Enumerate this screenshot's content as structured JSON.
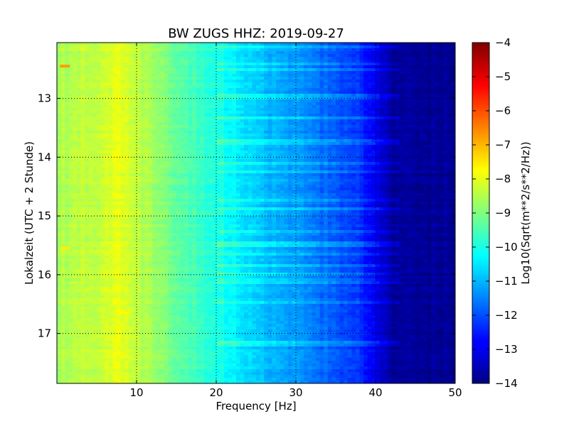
{
  "chart_data": {
    "type": "heatmap",
    "title": "BW ZUGS HHZ: 2019-09-27",
    "xlabel": "Frequency [Hz]",
    "ylabel": "Lokalzeit (UTC + 2 Stunde)",
    "xlim": [
      0,
      50
    ],
    "ylim_hours": [
      12.05,
      17.85
    ],
    "y_inverted": true,
    "x_ticks": [
      10,
      20,
      30,
      40,
      50
    ],
    "y_ticks": [
      13,
      14,
      15,
      16,
      17
    ],
    "grid": true,
    "colormap": "jet",
    "colorbar": {
      "label": "Log10(Sqrt(m**2/s**2/Hz))",
      "range": [
        -14,
        -4
      ],
      "ticks": [
        -4,
        -5,
        -6,
        -7,
        -8,
        -9,
        -10,
        -11,
        -12,
        -13,
        -14
      ]
    },
    "spectrum_profile": {
      "frequency_hz": [
        0,
        5,
        8,
        10,
        15,
        20,
        22,
        25,
        30,
        35,
        38,
        40,
        41,
        42,
        50
      ],
      "log10_amplitude": [
        -8.6,
        -8.3,
        -8.0,
        -8.4,
        -9.3,
        -10.0,
        -10.3,
        -10.8,
        -11.3,
        -11.9,
        -12.3,
        -12.8,
        -13.3,
        -13.7,
        -13.8
      ]
    },
    "annotations": [
      {
        "frequency_hz": 1.0,
        "time_hour": 12.45,
        "log10_amplitude": -6.8
      },
      {
        "frequency_hz": 1.0,
        "time_hour": 15.55,
        "log10_amplitude": -7.6
      },
      {
        "frequency_hz": 8.5,
        "time_hour": 16.65,
        "log10_amplitude": -7.7
      }
    ]
  }
}
